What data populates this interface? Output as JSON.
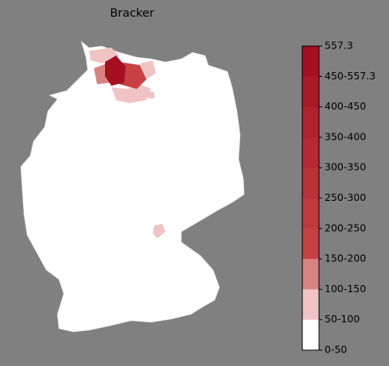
{
  "title": "Bracker",
  "colorbar": {
    "labels": [
      "557.3",
      "450-557.3",
      "400-450",
      "350-400",
      "300-350",
      "250-300",
      "200-250",
      "150-200",
      "100-150",
      "50-100",
      "0-50"
    ],
    "colors": [
      "#a50f20",
      "#ad1826",
      "#b2202c",
      "#b72832",
      "#bc3038",
      "#c1383e",
      "#c64044",
      "#d98282",
      "#f0c4c4",
      "#ffffff"
    ]
  }
}
